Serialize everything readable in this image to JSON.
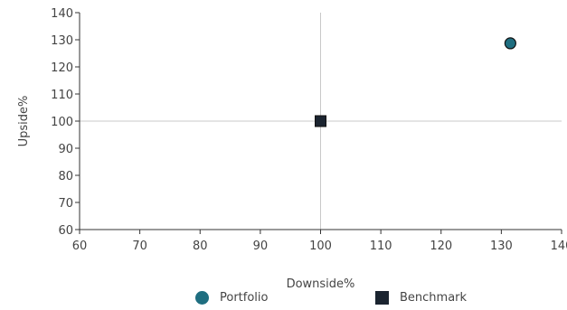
{
  "chart_data": {
    "type": "scatter",
    "xlabel": "Downside%",
    "ylabel": "Upside%",
    "xlim": [
      60,
      140
    ],
    "ylim": [
      60,
      140
    ],
    "x_ticks": [
      60,
      70,
      80,
      90,
      100,
      110,
      120,
      130,
      140
    ],
    "y_ticks": [
      60,
      70,
      80,
      90,
      100,
      110,
      120,
      130,
      140
    ],
    "reference_lines": {
      "x": 100,
      "y": 100
    },
    "legend_position": "bottom",
    "series": [
      {
        "name": "Portfolio",
        "marker": "circle",
        "color": "#1f6e80",
        "points": [
          {
            "x": 131.5,
            "y": 128.7
          }
        ]
      },
      {
        "name": "Benchmark",
        "marker": "square",
        "color": "#1b2430",
        "points": [
          {
            "x": 100,
            "y": 100
          }
        ]
      }
    ]
  },
  "colors": {
    "axis": "#333333",
    "reference_line": "#c8c8c8"
  }
}
